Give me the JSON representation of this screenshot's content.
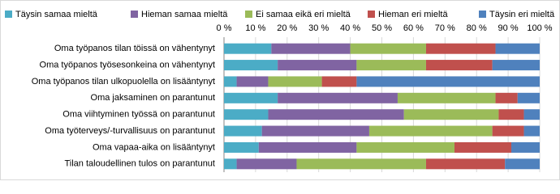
{
  "chart_data": {
    "type": "stacked_bar_horizontal",
    "categories": [
      "Oma työpanos tilan töissä on vähentynyt",
      "Oma työpanos työsesonkeina on vähentynyt",
      "Oma työpanos tilan ulkopuolella on lisääntynyt",
      "Oma jaksaminen on parantunut",
      "Oma viihtyminen työssä on parantunut",
      "Oma työterveys/-turvallisuus on parantunut",
      "Oma vapaa-aika on lisääntynyt",
      "Tilan taloudellinen tulos on parantunut"
    ],
    "series": [
      {
        "name": "Täysin samaa mieltä",
        "color": "#4bacc6",
        "values": [
          15,
          17,
          4,
          17,
          14,
          12,
          11,
          4
        ]
      },
      {
        "name": "Hieman samaa mieltä",
        "color": "#8064a2",
        "values": [
          25,
          25,
          10,
          38,
          43,
          34,
          31,
          19
        ]
      },
      {
        "name": "Ei samaa eikä eri mieltä",
        "color": "#9bbb59",
        "values": [
          24,
          22,
          17,
          31,
          30,
          39,
          31,
          41
        ]
      },
      {
        "name": "Hieman eri mieltä",
        "color": "#c0504d",
        "values": [
          22,
          21,
          11,
          7,
          8,
          10,
          18,
          25
        ]
      },
      {
        "name": "Täysin eri mieltä",
        "color": "#4f81bd",
        "values": [
          14,
          15,
          58,
          7,
          5,
          5,
          9,
          11
        ]
      }
    ],
    "xlim": [
      0,
      100
    ],
    "xticks": [
      {
        "value": 0,
        "label": "0 %"
      },
      {
        "value": 10,
        "label": "10 %"
      },
      {
        "value": 20,
        "label": "20 %"
      },
      {
        "value": 30,
        "label": "30 %"
      },
      {
        "value": 40,
        "label": "40 %"
      },
      {
        "value": 50,
        "label": "50 %"
      },
      {
        "value": 60,
        "label": "60 %"
      },
      {
        "value": 70,
        "label": "70 %"
      },
      {
        "value": 80,
        "label": "80 %"
      },
      {
        "value": 90,
        "label": "90 %"
      },
      {
        "value": 100,
        "label": "100 %"
      }
    ],
    "grid": true,
    "legend": "top"
  }
}
